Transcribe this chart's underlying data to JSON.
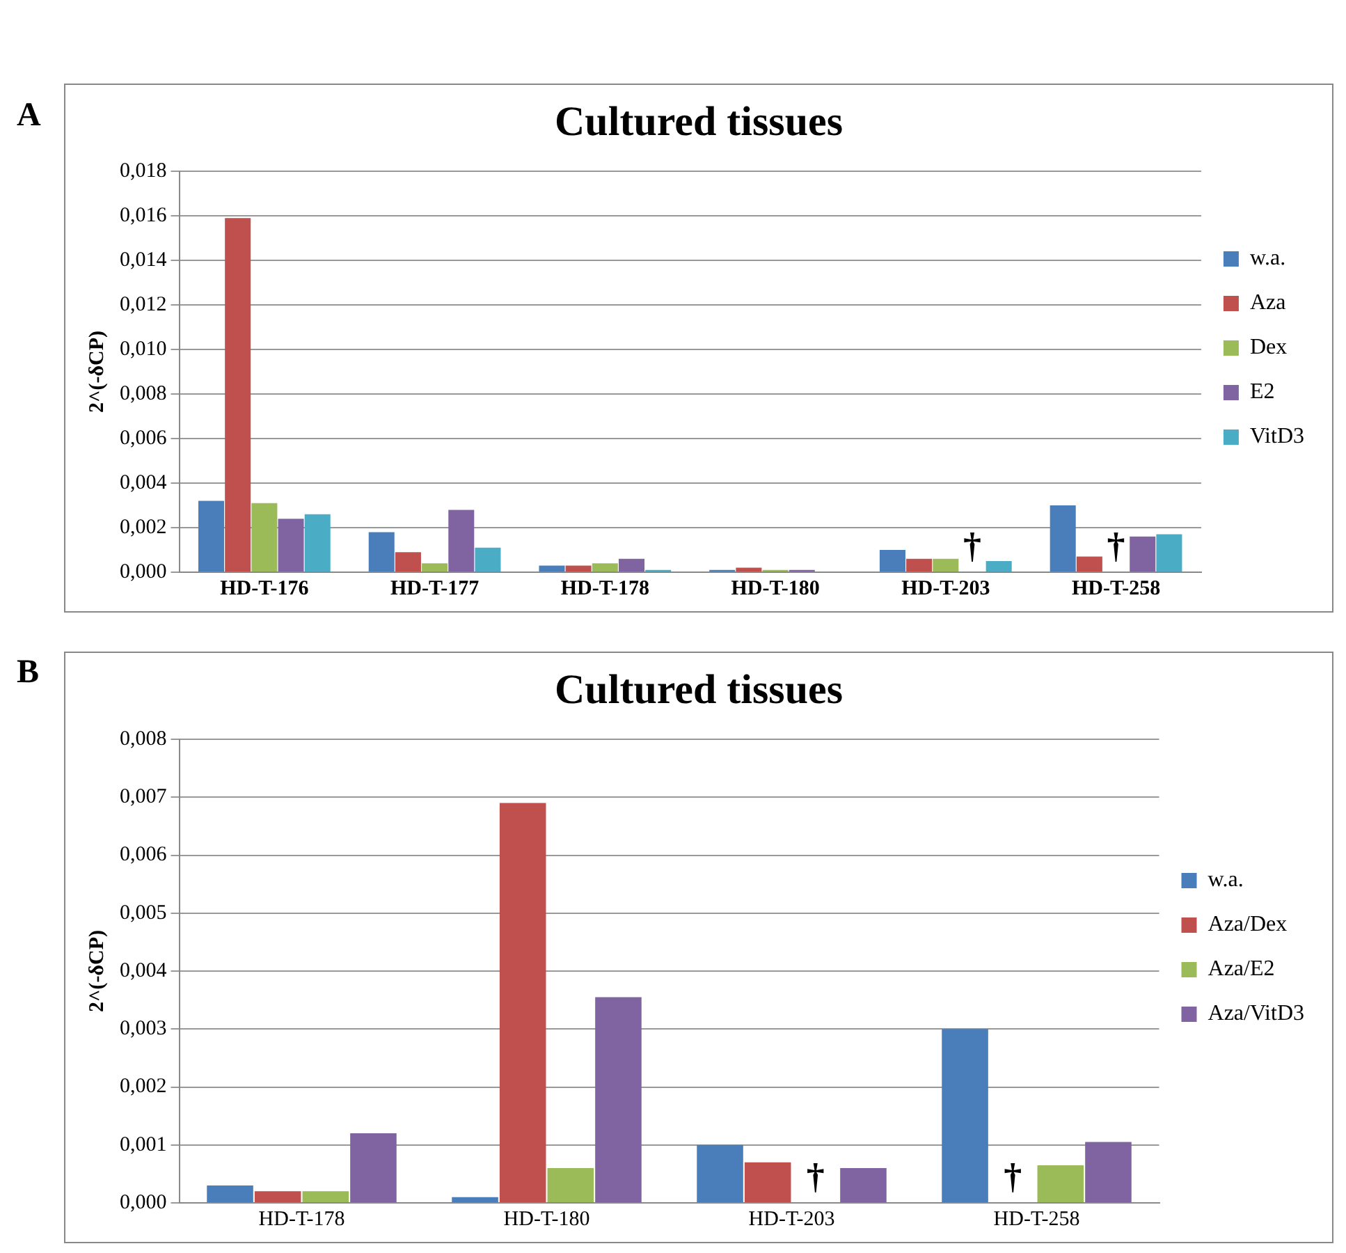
{
  "chart_data": [
    {
      "type": "bar",
      "title": "Cultured tissues",
      "ylabel": "2^(-δCP)",
      "categories": [
        "HD-T-176",
        "HD-T-177",
        "HD-T-178",
        "HD-T-180",
        "HD-T-203",
        "HD-T-258"
      ],
      "series": [
        {
          "name": "w.a.",
          "color": "#4a7ebb",
          "values": [
            0.0032,
            0.0018,
            0.0003,
            0.0001,
            0.001,
            0.003
          ]
        },
        {
          "name": "Aza",
          "color": "#c0504d",
          "values": [
            0.0159,
            0.0009,
            0.0003,
            0.0002,
            0.0006,
            0.0007
          ]
        },
        {
          "name": "Dex",
          "color": "#9bbb59",
          "values": [
            0.0031,
            0.0004,
            0.0004,
            0.0001,
            0.0006,
            null
          ],
          "value_labels": [
            null,
            null,
            null,
            null,
            null,
            "†"
          ]
        },
        {
          "name": "E2",
          "color": "#8064a2",
          "values": [
            0.0024,
            0.0028,
            0.0006,
            0.0001,
            null,
            0.0016
          ],
          "value_labels": [
            null,
            null,
            null,
            null,
            "†",
            null
          ]
        },
        {
          "name": "VitD3",
          "color": "#4bacc6",
          "values": [
            0.0026,
            0.0011,
            0.0001,
            null,
            0.0005,
            0.0017
          ]
        }
      ],
      "ylim": [
        0,
        0.018
      ],
      "yticks": [
        {
          "value": 0,
          "label": "0,000"
        },
        {
          "value": 0.002,
          "label": "0,002"
        },
        {
          "value": 0.004,
          "label": "0,004"
        },
        {
          "value": 0.006,
          "label": "0,006"
        },
        {
          "value": 0.008,
          "label": "0,008"
        },
        {
          "value": 0.01,
          "label": "0,010"
        },
        {
          "value": 0.012,
          "label": "0,012"
        },
        {
          "value": 0.014,
          "label": "0,014"
        },
        {
          "value": 0.016,
          "label": "0,016"
        },
        {
          "value": 0.018,
          "label": "0,018"
        }
      ],
      "grid": "y",
      "legend": "right",
      "annotations": [
        "A"
      ]
    },
    {
      "type": "bar",
      "title": "Cultured tissues",
      "ylabel": "2^(-δCP)",
      "categories": [
        "HD-T-178",
        "HD-T-180",
        "HD-T-203",
        "HD-T-258"
      ],
      "series": [
        {
          "name": "w.a.",
          "color": "#4a7ebb",
          "values": [
            0.0003,
            0.0001,
            0.001,
            0.003
          ]
        },
        {
          "name": "Aza/Dex",
          "color": "#c0504d",
          "values": [
            0.0002,
            0.0069,
            0.0007,
            null
          ],
          "value_labels": [
            null,
            null,
            null,
            "†"
          ]
        },
        {
          "name": "Aza/E2",
          "color": "#9bbb59",
          "values": [
            0.0002,
            0.0006,
            null,
            0.00065
          ],
          "value_labels": [
            null,
            null,
            "†",
            null
          ]
        },
        {
          "name": "Aza/VitD3",
          "color": "#8064a2",
          "values": [
            0.0012,
            0.00355,
            0.0006,
            0.00105
          ]
        }
      ],
      "ylim": [
        0,
        0.008
      ],
      "yticks": [
        {
          "value": 0,
          "label": "0,000"
        },
        {
          "value": 0.001,
          "label": "0,001"
        },
        {
          "value": 0.002,
          "label": "0,002"
        },
        {
          "value": 0.003,
          "label": "0,003"
        },
        {
          "value": 0.004,
          "label": "0,004"
        },
        {
          "value": 0.005,
          "label": "0,005"
        },
        {
          "value": 0.006,
          "label": "0,006"
        },
        {
          "value": 0.007,
          "label": "0,007"
        },
        {
          "value": 0.008,
          "label": "0,008"
        }
      ],
      "grid": "y",
      "legend": "right",
      "annotations": [
        "B"
      ]
    }
  ]
}
